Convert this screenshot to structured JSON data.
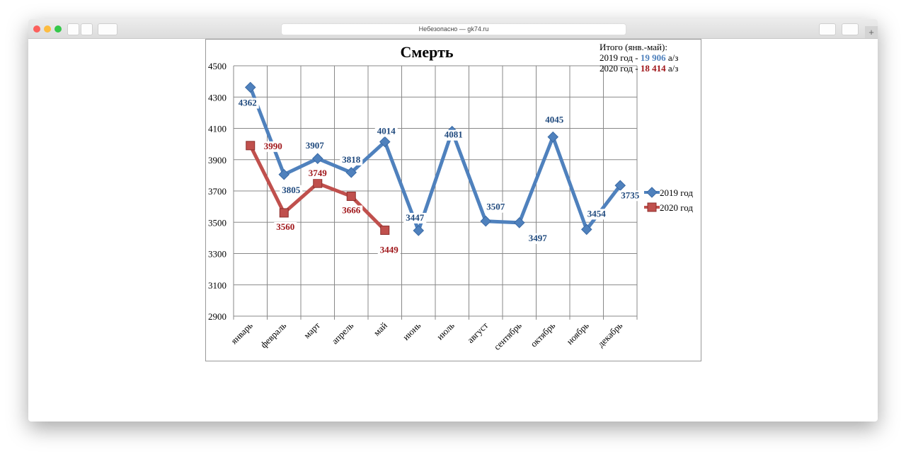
{
  "browser": {
    "url": "Небезопасно — gk74.ru"
  },
  "chart_data": {
    "type": "line",
    "title": "Смерть",
    "annotation": {
      "heading": "Итого (янв.-май):",
      "line1": {
        "prefix": "2019 год - ",
        "total": "19 906",
        "unit": "а/з"
      },
      "line2": {
        "prefix": "2020 год - ",
        "total": "18 414",
        "unit": "а/з"
      }
    },
    "categories": [
      "январь",
      "февраль",
      "март",
      "апрель",
      "май",
      "июнь",
      "июль",
      "август",
      "сентябрь",
      "октябрь",
      "ноябрь",
      "декабрь"
    ],
    "series": [
      {
        "name": "2019 год",
        "color": "#4f81bd",
        "label_color": "#1f497d",
        "marker": "diamond",
        "values": [
          4362,
          3805,
          3907,
          3818,
          4014,
          3447,
          4081,
          3507,
          3497,
          4045,
          3454,
          3735
        ]
      },
      {
        "name": "2020 год",
        "color": "#c0504d",
        "label_color": "#a0171b",
        "marker": "square",
        "values": [
          3990,
          3560,
          3749,
          3666,
          3449,
          null,
          null,
          null,
          null,
          null,
          null,
          null
        ]
      }
    ],
    "ylim": [
      2900,
      4500
    ],
    "yticks": [
      2900,
      3100,
      3300,
      3500,
      3700,
      3900,
      4100,
      4300,
      4500
    ],
    "grid": true,
    "legend": "right"
  }
}
